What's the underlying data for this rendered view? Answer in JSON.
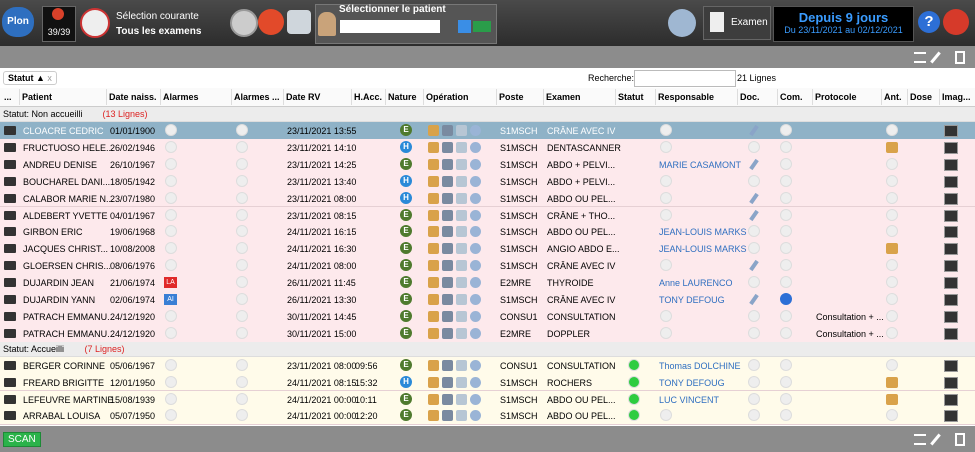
{
  "toolbar": {
    "logo": "Plon",
    "counter": "39/39",
    "selection_title": "Sélection courante",
    "selection_value": "Tous les examens",
    "patient_label": "Sélectionner le patient",
    "exam_button": "Examen",
    "date_title": "Depuis 9 jours",
    "date_range": "Du 23/11/2021 au 02/12/2021",
    "help": "?"
  },
  "filter": {
    "sort_tag": "Statut ▲",
    "sort_close": "x",
    "search_label": "Recherche:",
    "count": "21 Lignes"
  },
  "table": {
    "columns": [
      "...",
      "Patient",
      "Date naiss.",
      "Alarmes",
      "Alarmes ...",
      "Date RV",
      "H.Acc.",
      "Nature",
      "Opération",
      "Poste",
      "Examen",
      "Statut",
      "Responsable",
      "Doc.",
      "Com.",
      "Protocole",
      "Ant.",
      "Dose",
      "Imag..."
    ],
    "groups": [
      {
        "label": "Statut: Non accueilli",
        "count": "(13 Lignes)",
        "rows": [
          {
            "patient": "CLOACRE CEDRIC",
            "birth": "01/01/1900",
            "date_rv": "23/11/2021 13:55",
            "nature": "E",
            "poste": "S1MSCH",
            "examen": "CRÂNE AVEC IV",
            "doc": true,
            "selected": true
          },
          {
            "patient": "FRUCTUOSO HELE...",
            "birth": "26/02/1946",
            "date_rv": "23/11/2021 14:10",
            "nature": "H",
            "poste": "S1MSCH",
            "examen": "DENTASCANNER",
            "ant": true
          },
          {
            "patient": "ANDREU DENISE",
            "birth": "26/10/1967",
            "date_rv": "23/11/2021 14:25",
            "nature": "E",
            "poste": "S1MSCH",
            "examen": "ABDO + PELVI...",
            "responsable": "MARIE CASAMONT",
            "doc": true
          },
          {
            "patient": "BOUCHAREL DANI...",
            "birth": "18/05/1942",
            "date_rv": "23/11/2021 13:40",
            "nature": "H",
            "poste": "S1MSCH",
            "examen": "ABDO + PELVI..."
          },
          {
            "patient": "CALABOR MARIE N...",
            "birth": "23/07/1980",
            "date_rv": "23/11/2021 08:00",
            "nature": "H",
            "poste": "S1MSCH",
            "examen": "ABDO OU PEL...",
            "doc": true
          },
          {
            "patient": "ALDEBERT YVETTE",
            "birth": "04/01/1967",
            "date_rv": "23/11/2021 08:15",
            "nature": "E",
            "poste": "S1MSCH",
            "examen": "CRÂNE + THO...",
            "doc": true
          },
          {
            "patient": "GIRBON ERIC",
            "birth": "19/06/1968",
            "date_rv": "24/11/2021 16:15",
            "nature": "E",
            "poste": "S1MSCH",
            "examen": "ABDO OU PEL...",
            "responsable": "JEAN-LOUIS MARKS"
          },
          {
            "patient": "JACQUES CHRIST...",
            "birth": "10/08/2008",
            "date_rv": "24/11/2021 16:30",
            "nature": "E",
            "poste": "S1MSCH",
            "examen": "ANGIO ABDO E...",
            "responsable": "JEAN-LOUIS MARKS",
            "ant": true
          },
          {
            "patient": "GLOERSEN CHRIS...",
            "birth": "08/06/1976",
            "date_rv": "24/11/2021 08:00",
            "nature": "E",
            "poste": "S1MSCH",
            "examen": "CRÂNE AVEC IV",
            "doc": true
          },
          {
            "patient": "DUJARDIN JEAN",
            "birth": "21/06/1974",
            "alarm": "LA",
            "date_rv": "26/11/2021 11:45",
            "nature": "E",
            "poste": "E2MRE",
            "examen": "THYROIDE",
            "responsable": "Anne LAURENCO"
          },
          {
            "patient": "DUJARDIN YANN",
            "birth": "02/06/1974",
            "alarm": "AI",
            "date_rv": "26/11/2021 13:30",
            "nature": "E",
            "poste": "S1MSCH",
            "examen": "CRÂNE AVEC IV",
            "responsable": "TONY DEFOUG",
            "doc": true,
            "info": true
          },
          {
            "patient": "PATRACH EMMANU...",
            "birth": "24/12/1920",
            "date_rv": "30/11/2021 14:45",
            "nature": "E",
            "poste": "CONSU1",
            "examen": "CONSULTATION",
            "protocole": "Consultation + ..."
          },
          {
            "patient": "PATRACH EMMANU...",
            "birth": "24/12/1920",
            "date_rv": "30/11/2021 15:00",
            "nature": "E",
            "poste": "E2MRE",
            "examen": "DOPPLER",
            "protocole": "Consultation + ..."
          }
        ]
      },
      {
        "label": "Statut: Accueilli",
        "count": "(7 Lignes)",
        "rows": [
          {
            "patient": "BERGER CORINNE",
            "birth": "05/06/1967",
            "date_rv": "23/11/2021 08:00",
            "h_acc": "09:56",
            "nature": "E",
            "poste": "CONSU1",
            "examen": "CONSULTATION",
            "responsable": "Thomas DOLCHINE",
            "status_ok": true
          },
          {
            "patient": "FREARD BRIGITTE",
            "birth": "12/01/1950",
            "date_rv": "24/11/2021 08:15",
            "h_acc": "15:32",
            "nature": "H",
            "poste": "S1MSCH",
            "examen": "ROCHERS",
            "responsable": "TONY DEFOUG",
            "status_ok": true,
            "ant": true
          },
          {
            "patient": "LEFEUVRE MARTINE",
            "birth": "15/08/1939",
            "date_rv": "24/11/2021 00:00",
            "h_acc": "10:11",
            "nature": "E",
            "poste": "S1MSCH",
            "examen": "ABDO OU PEL...",
            "responsable": "LUC VINCENT",
            "status_ok": true,
            "ant": true
          },
          {
            "patient": "ARRABAL LOUISA",
            "birth": "05/07/1950",
            "date_rv": "24/11/2021 00:00",
            "h_acc": "12:20",
            "nature": "E",
            "poste": "S1MSCH",
            "examen": "ABDO OU PEL...",
            "status_ok": true
          }
        ]
      }
    ]
  },
  "footer": {
    "scan": "SCAN"
  }
}
